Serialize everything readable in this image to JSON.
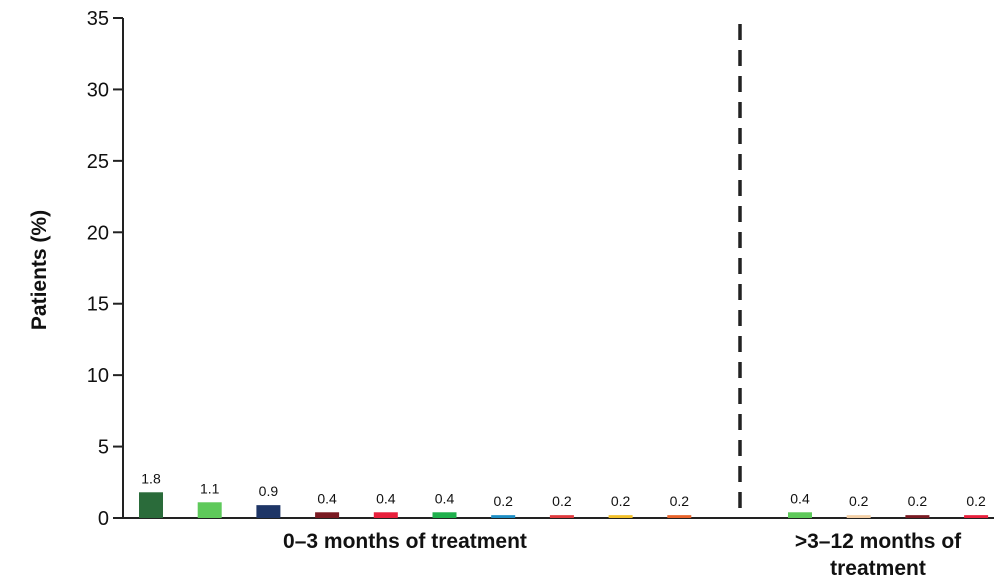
{
  "chart_data": {
    "type": "bar",
    "ylabel": "Patients (%)",
    "ylim": [
      0,
      35
    ],
    "yticks": [
      0,
      5,
      10,
      15,
      20,
      25,
      30,
      35
    ],
    "grid": false,
    "legend": "none",
    "groups": [
      {
        "label": "0–3 months of treatment",
        "bars": [
          {
            "value": 1.8,
            "label": "1.8",
            "color": "#2a6b3a"
          },
          {
            "value": 1.1,
            "label": "1.1",
            "color": "#5ec95a"
          },
          {
            "value": 0.9,
            "label": "0.9",
            "color": "#1e3566"
          },
          {
            "value": 0.4,
            "label": "0.4",
            "color": "#7a1a22"
          },
          {
            "value": 0.4,
            "label": "0.4",
            "color": "#e8203c"
          },
          {
            "value": 0.4,
            "label": "0.4",
            "color": "#1fb04c"
          },
          {
            "value": 0.2,
            "label": "0.2",
            "color": "#1d8ec5"
          },
          {
            "value": 0.2,
            "label": "0.2",
            "color": "#e03a3e"
          },
          {
            "value": 0.2,
            "label": "0.2",
            "color": "#f2c02a"
          },
          {
            "value": 0.2,
            "label": "0.2",
            "color": "#e8632b"
          }
        ]
      },
      {
        "label_lines": [
          ">3–12 months of",
          "treatment"
        ],
        "bars": [
          {
            "value": 0.4,
            "label": "0.4",
            "color": "#5ec95a"
          },
          {
            "value": 0.2,
            "label": "0.2",
            "color": "#f3cfa6"
          },
          {
            "value": 0.2,
            "label": "0.2",
            "color": "#7a1a22"
          },
          {
            "value": 0.2,
            "label": "0.2",
            "color": "#e8203c"
          }
        ]
      }
    ],
    "divider": {
      "style": "dashed",
      "between_groups": true
    }
  }
}
